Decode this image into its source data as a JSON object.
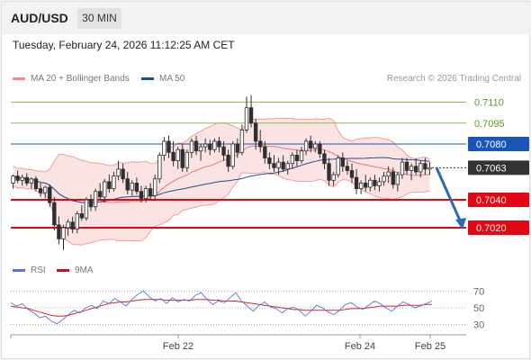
{
  "header": {
    "symbol": "AUD/USD",
    "interval": "30 MIN",
    "timestamp": "Tuesday, February 24, 2026 11:12:25 AM CET",
    "copyright": "Research © 2026 Trading Central"
  },
  "colors": {
    "bollinger": "#f08a84",
    "bollinger_fill": "#fbd9d9",
    "ma50": "#1c4f8f",
    "ma20": "#e07a74",
    "level_green": "#8bc34a",
    "level_blue": "#1a56b4",
    "level_red": "#e30613",
    "current_box": "#333333",
    "arrow": "#2a6bb5",
    "rsi": "#5577dd",
    "rsi_ma": "#d8232a",
    "candle_up": "#2f2f2f",
    "candle_down": "#2f2f2f"
  },
  "legend": {
    "main": [
      {
        "label": "MA 20 + Bollinger Bands",
        "color": "#f08a84"
      },
      {
        "label": "MA 50",
        "color": "#1c4f8f"
      }
    ],
    "rsi": [
      {
        "label": "RSI",
        "color": "#5577dd"
      },
      {
        "label": "9MA",
        "color": "#e30613"
      }
    ]
  },
  "chart_data": [
    {
      "type": "candlestick",
      "title": "AUD/USD",
      "ylim": [
        0.7,
        0.712
      ],
      "levels": [
        {
          "value": 0.711,
          "label": "0.7110",
          "color": "#8bc34a",
          "kind": "target"
        },
        {
          "value": 0.7095,
          "label": "0.7095",
          "color": "#8bc34a",
          "kind": "target"
        },
        {
          "value": 0.708,
          "label": "0.7080",
          "color": "#1a56b4",
          "kind": "pivot"
        },
        {
          "value": 0.704,
          "label": "0.7040",
          "color": "#e30613",
          "kind": "support"
        },
        {
          "value": 0.702,
          "label": "0.7020",
          "color": "#e30613",
          "kind": "support"
        }
      ],
      "current_price": {
        "value": 0.7063,
        "label": "0.7063"
      },
      "forecast_arrow": {
        "from": 0.7063,
        "to": 0.702
      },
      "x_ticks": [
        "Feb 22",
        "Feb 24",
        "Feb 25"
      ],
      "candles": [
        [
          0.7052,
          0.7058,
          0.7048,
          0.7057
        ],
        [
          0.7057,
          0.7061,
          0.7052,
          0.7054
        ],
        [
          0.7054,
          0.7058,
          0.705,
          0.7056
        ],
        [
          0.7056,
          0.7059,
          0.705,
          0.7052
        ],
        [
          0.7052,
          0.7056,
          0.7048,
          0.7055
        ],
        [
          0.7055,
          0.7057,
          0.7046,
          0.7048
        ],
        [
          0.7048,
          0.7052,
          0.7042,
          0.7045
        ],
        [
          0.7045,
          0.705,
          0.7041,
          0.7049
        ],
        [
          0.7049,
          0.7051,
          0.7035,
          0.7038
        ],
        [
          0.7038,
          0.7042,
          0.7018,
          0.7022
        ],
        [
          0.7022,
          0.7028,
          0.7008,
          0.7012
        ],
        [
          0.7012,
          0.7022,
          0.7004,
          0.702
        ],
        [
          0.702,
          0.7026,
          0.7014,
          0.7024
        ],
        [
          0.7024,
          0.7028,
          0.7016,
          0.7019
        ],
        [
          0.7019,
          0.7032,
          0.7016,
          0.703
        ],
        [
          0.703,
          0.7036,
          0.7025,
          0.7027
        ],
        [
          0.7027,
          0.7042,
          0.7025,
          0.704
        ],
        [
          0.704,
          0.7044,
          0.7032,
          0.7035
        ],
        [
          0.7035,
          0.7048,
          0.7032,
          0.7046
        ],
        [
          0.7046,
          0.7052,
          0.704,
          0.7042
        ],
        [
          0.7042,
          0.7055,
          0.7038,
          0.7053
        ],
        [
          0.7053,
          0.7058,
          0.7045,
          0.7048
        ],
        [
          0.7048,
          0.706,
          0.7046,
          0.7057
        ],
        [
          0.7057,
          0.7068,
          0.7054,
          0.7062
        ],
        [
          0.7062,
          0.7066,
          0.7052,
          0.7055
        ],
        [
          0.7055,
          0.706,
          0.7044,
          0.7047
        ],
        [
          0.7047,
          0.7054,
          0.7043,
          0.7052
        ],
        [
          0.7052,
          0.7056,
          0.7044,
          0.7046
        ],
        [
          0.7046,
          0.705,
          0.7038,
          0.7041
        ],
        [
          0.7041,
          0.705,
          0.7038,
          0.7048
        ],
        [
          0.7048,
          0.7052,
          0.704,
          0.7043
        ],
        [
          0.7043,
          0.7058,
          0.704,
          0.7055
        ],
        [
          0.7055,
          0.7074,
          0.7052,
          0.7072
        ],
        [
          0.7072,
          0.7085,
          0.7068,
          0.7082
        ],
        [
          0.7082,
          0.7086,
          0.707,
          0.7074
        ],
        [
          0.7074,
          0.7082,
          0.7064,
          0.7068
        ],
        [
          0.7068,
          0.7078,
          0.7062,
          0.7076
        ],
        [
          0.7076,
          0.708,
          0.706,
          0.7063
        ],
        [
          0.7063,
          0.7076,
          0.706,
          0.7074
        ],
        [
          0.7074,
          0.7084,
          0.707,
          0.7082
        ],
        [
          0.7082,
          0.7086,
          0.7072,
          0.7075
        ],
        [
          0.7075,
          0.708,
          0.7068,
          0.7078
        ],
        [
          0.7078,
          0.7084,
          0.7074,
          0.708
        ],
        [
          0.708,
          0.7083,
          0.7072,
          0.7076
        ],
        [
          0.7076,
          0.7084,
          0.7074,
          0.7082
        ],
        [
          0.7082,
          0.7085,
          0.7074,
          0.7078
        ],
        [
          0.7078,
          0.7082,
          0.7068,
          0.7072
        ],
        [
          0.7072,
          0.7076,
          0.706,
          0.7064
        ],
        [
          0.7064,
          0.7082,
          0.7062,
          0.708
        ],
        [
          0.708,
          0.7084,
          0.707,
          0.7074
        ],
        [
          0.7074,
          0.7094,
          0.7072,
          0.709
        ],
        [
          0.709,
          0.7114,
          0.7088,
          0.7106
        ],
        [
          0.7106,
          0.7115,
          0.7092,
          0.7095
        ],
        [
          0.7095,
          0.7098,
          0.7076,
          0.7082
        ],
        [
          0.7082,
          0.709,
          0.7074,
          0.7078
        ],
        [
          0.7078,
          0.7082,
          0.7066,
          0.707
        ],
        [
          0.707,
          0.7074,
          0.7062,
          0.7066
        ],
        [
          0.7066,
          0.7072,
          0.706,
          0.7063
        ],
        [
          0.7063,
          0.707,
          0.7058,
          0.7067
        ],
        [
          0.7067,
          0.7072,
          0.706,
          0.7062
        ],
        [
          0.7062,
          0.7068,
          0.7058,
          0.7066
        ],
        [
          0.7066,
          0.7074,
          0.7062,
          0.7072
        ],
        [
          0.7072,
          0.7076,
          0.7064,
          0.7068
        ],
        [
          0.7068,
          0.7078,
          0.7066,
          0.7075
        ],
        [
          0.7075,
          0.7084,
          0.7072,
          0.7082
        ],
        [
          0.7082,
          0.7086,
          0.7074,
          0.7077
        ],
        [
          0.7077,
          0.7082,
          0.7074,
          0.708
        ],
        [
          0.708,
          0.7082,
          0.707,
          0.7073
        ],
        [
          0.7073,
          0.7076,
          0.7062,
          0.7066
        ],
        [
          0.7066,
          0.707,
          0.705,
          0.7054
        ],
        [
          0.7054,
          0.706,
          0.705,
          0.7058
        ],
        [
          0.7058,
          0.7072,
          0.7056,
          0.707
        ],
        [
          0.707,
          0.7074,
          0.706,
          0.7064
        ],
        [
          0.7064,
          0.7068,
          0.7058,
          0.7061
        ],
        [
          0.7061,
          0.7066,
          0.7052,
          0.7056
        ],
        [
          0.7056,
          0.7062,
          0.7044,
          0.7048
        ],
        [
          0.7048,
          0.7054,
          0.7044,
          0.7052
        ],
        [
          0.7052,
          0.7058,
          0.7046,
          0.7049
        ],
        [
          0.7049,
          0.7056,
          0.7046,
          0.7054
        ],
        [
          0.7054,
          0.7058,
          0.7047,
          0.705
        ],
        [
          0.705,
          0.7056,
          0.7046,
          0.7053
        ],
        [
          0.7053,
          0.706,
          0.705,
          0.7057
        ],
        [
          0.7057,
          0.7064,
          0.7052,
          0.706
        ],
        [
          0.706,
          0.7063,
          0.7048,
          0.7051
        ],
        [
          0.7051,
          0.706,
          0.7046,
          0.7058
        ],
        [
          0.7058,
          0.707,
          0.7055,
          0.7067
        ],
        [
          0.7067,
          0.707,
          0.7058,
          0.7061
        ],
        [
          0.7061,
          0.7066,
          0.7054,
          0.7064
        ],
        [
          0.7064,
          0.707,
          0.7058,
          0.706
        ],
        [
          0.706,
          0.7068,
          0.7056,
          0.7066
        ],
        [
          0.7066,
          0.707,
          0.7058,
          0.7062
        ],
        [
          0.7062,
          0.7067,
          0.7058,
          0.7063
        ]
      ]
    },
    {
      "type": "line",
      "title": "RSI",
      "ylim": [
        20,
        80
      ],
      "y_ticks": [
        30,
        50,
        70
      ],
      "series": [
        {
          "name": "RSI",
          "values": [
            56,
            52,
            55,
            48,
            44,
            38,
            40,
            34,
            31,
            36,
            42,
            47,
            44,
            50,
            53,
            49,
            58,
            55,
            61,
            57,
            52,
            60,
            66,
            70,
            63,
            58,
            61,
            55,
            62,
            57,
            60,
            58,
            65,
            68,
            60,
            54,
            58,
            56,
            62,
            68,
            58,
            52,
            46,
            53,
            57,
            51,
            49,
            44,
            49,
            51,
            47,
            40,
            46,
            53,
            50,
            45,
            42,
            47,
            54,
            56,
            51,
            48,
            53,
            58,
            55,
            50,
            46,
            52,
            57,
            54,
            50,
            52,
            55,
            58
          ]
        },
        {
          "name": "9MA",
          "values": [
            52,
            51,
            50,
            49,
            47,
            45,
            43,
            41,
            40,
            40,
            41,
            43,
            45,
            47,
            49,
            51,
            53,
            55,
            56,
            57,
            57,
            58,
            59,
            60,
            60,
            60,
            60,
            59,
            59,
            59,
            59,
            59,
            60,
            60,
            60,
            59,
            59,
            58,
            58,
            58,
            57,
            56,
            55,
            54,
            53,
            52,
            51,
            50,
            49,
            48,
            48,
            47,
            47,
            47,
            47,
            47,
            47,
            47,
            48,
            49,
            49,
            49,
            50,
            51,
            52,
            52,
            52,
            52,
            53,
            53,
            53,
            53,
            54,
            54
          ]
        }
      ]
    }
  ]
}
